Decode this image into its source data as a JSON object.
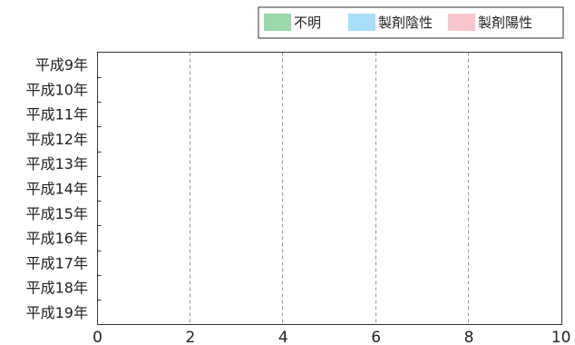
{
  "chart_data": {
    "type": "bar",
    "orientation": "horizontal",
    "stacked": true,
    "categories": [
      "平成9年",
      "平成10年",
      "平成11年",
      "平成12年",
      "平成13年",
      "平成14年",
      "平成15年",
      "平成16年",
      "平成17年",
      "平成18年",
      "平成19年"
    ],
    "series": [
      {
        "name": "不明",
        "color": "#99d9aa",
        "values": [
          0,
          0,
          0,
          0,
          0,
          0,
          0,
          0,
          0,
          0,
          0
        ]
      },
      {
        "name": "製剤陰性",
        "color": "#a9def9",
        "values": [
          0,
          0,
          0,
          0,
          0,
          0,
          0,
          0,
          0,
          0,
          0
        ]
      },
      {
        "name": "製剤陽性",
        "color": "#f7c5cc",
        "values": [
          0,
          0,
          0,
          0,
          0,
          0,
          0,
          0,
          0,
          0,
          0
        ]
      }
    ],
    "xlim": [
      0,
      10
    ],
    "xticks": [
      0,
      2,
      4,
      6,
      8,
      10
    ],
    "grid": "vertical-dashed",
    "legend_position": "top-right"
  }
}
